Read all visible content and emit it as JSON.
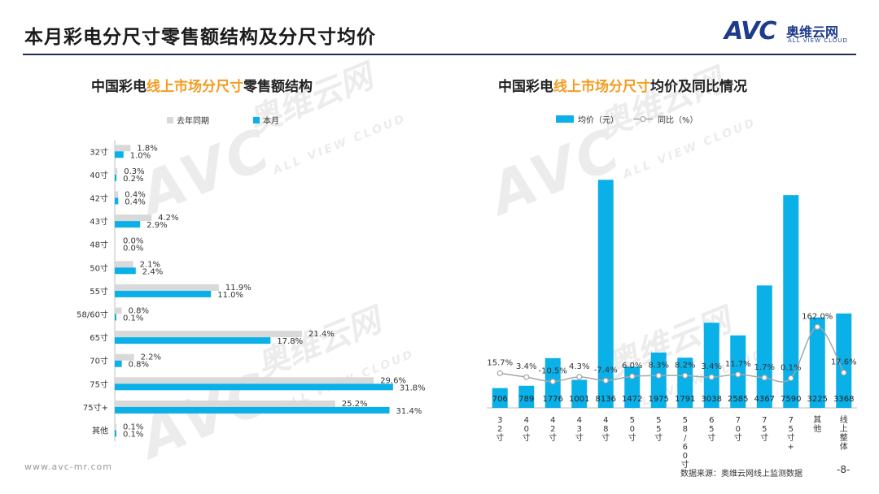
{
  "page": {
    "title": "本月彩电分尺寸零售额结构及分尺寸均价",
    "logo_avc": "AVC",
    "logo_cn": "奥维云网",
    "logo_en": "ALL VIEW CLOUD",
    "footer_url": "www.avc-mr.com",
    "footer_source": "数据来源：奥维云网线上监测数据",
    "page_number": "-8-"
  },
  "watermark": {
    "avc": "AVC",
    "cn": "奥维云网",
    "en": "ALL VIEW CLOUD"
  },
  "chart_data": [
    {
      "type": "bar",
      "orientation": "horizontal",
      "title_parts": [
        "中国彩电",
        "线上市场分尺寸",
        "零售额结构"
      ],
      "categories": [
        "32寸",
        "40寸",
        "42寸",
        "43寸",
        "48寸",
        "50寸",
        "55寸",
        "58/60寸",
        "65寸",
        "70寸",
        "75寸",
        "75寸+",
        "其他"
      ],
      "series": [
        {
          "name": "去年同期",
          "color": "#d9d9d9",
          "values": [
            1.8,
            0.3,
            0.4,
            4.2,
            0.0,
            2.1,
            11.9,
            0.8,
            21.4,
            2.2,
            29.6,
            25.2,
            0.1
          ],
          "labels": [
            "1.8%",
            "0.3%",
            "0.4%",
            "4.2%",
            "0.0%",
            "2.1%",
            "11.9%",
            "0.8%",
            "21.4%",
            "2.2%",
            "29.6%",
            "25.2%",
            "0.1%"
          ]
        },
        {
          "name": "本月",
          "color": "#0ab0e8",
          "values": [
            1.0,
            0.2,
            0.4,
            2.9,
            0.0,
            2.4,
            11.0,
            0.1,
            17.8,
            0.8,
            31.8,
            31.4,
            0.1
          ],
          "labels": [
            "1.0%",
            "0.2%",
            "0.4%",
            "2.9%",
            "0.0%",
            "2.4%",
            "11.0%",
            "0.1%",
            "17.8%",
            "0.8%",
            "31.8%",
            "31.4%",
            "0.1%"
          ]
        }
      ],
      "xlim": [
        0,
        32
      ]
    },
    {
      "type": "bar+line",
      "title_parts": [
        "中国彩电",
        "线上市场分尺寸",
        "均价及同比情况"
      ],
      "categories": [
        "32寸",
        "40寸",
        "42寸",
        "43寸",
        "48寸",
        "50寸",
        "55寸",
        "58/60寸",
        "65寸",
        "70寸",
        "75寸",
        "75寸+",
        "其他",
        "线上整体"
      ],
      "bar_series": {
        "name": "均价（元）",
        "color": "#0ab0e8",
        "values": [
          706,
          789,
          1776,
          1001,
          8136,
          1472,
          1975,
          1791,
          3038,
          2585,
          4367,
          7590,
          3225,
          3368
        ],
        "labels": [
          "706",
          "789",
          "1776",
          "1001",
          "8136",
          "1472",
          "1975",
          "1791",
          "3038",
          "2585",
          "4367",
          "7590",
          "3225",
          "3368"
        ]
      },
      "line_series": {
        "name": "同比（%）",
        "color": "#a6a6a6",
        "values": [
          15.7,
          3.4,
          -10.5,
          4.3,
          -7.4,
          6.0,
          8.3,
          8.2,
          3.4,
          11.7,
          1.7,
          0.1,
          162.0,
          17.6
        ],
        "labels": [
          "15.7%",
          "3.4%",
          "-10.5%",
          "4.3%",
          "-7.4%",
          "6.0%",
          "8.3%",
          "8.2%",
          "3.4%",
          "11.7%",
          "1.7%",
          "0.1%",
          "162.0%",
          "17.6%"
        ]
      },
      "ylim_bar": [
        0,
        9500
      ],
      "ylim_line": [
        -30,
        180
      ]
    }
  ]
}
